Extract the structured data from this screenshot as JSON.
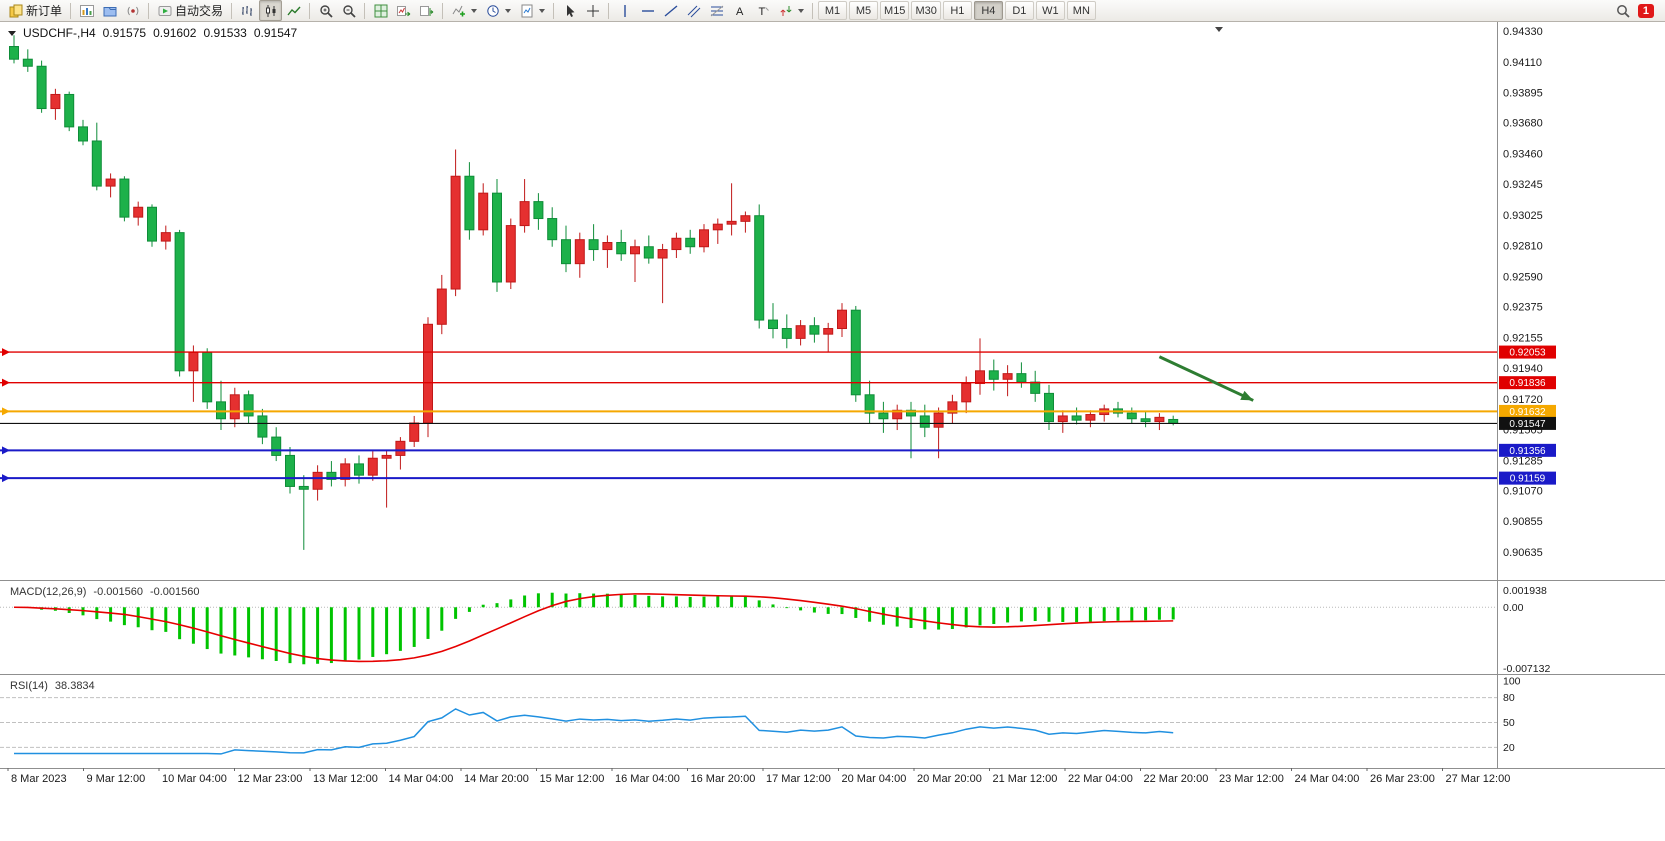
{
  "toolbar": {
    "buttons": [
      {
        "name": "new-order-button",
        "icon": "new-order",
        "label": "新订单",
        "group": 0
      },
      {
        "name": "new-chart-button",
        "icon": "new-chart",
        "group": 1
      },
      {
        "name": "profiles-button",
        "icon": "profiles",
        "group": 1
      },
      {
        "name": "community-button",
        "icon": "community",
        "group": 1
      },
      {
        "name": "autotrading-button",
        "icon": "autotrading",
        "label": "自动交易",
        "group": 2
      },
      {
        "name": "bar-chart-button",
        "icon": "bars",
        "group": 3
      },
      {
        "name": "candlestick-button",
        "icon": "candles",
        "group": 3,
        "active": true
      },
      {
        "name": "line-chart-button",
        "icon": "line-chart",
        "group": 3
      },
      {
        "name": "zoom-in-button",
        "icon": "zoom-in",
        "group": 4
      },
      {
        "name": "zoom-out-button",
        "icon": "zoom-out",
        "group": 4
      },
      {
        "name": "tile-windows-button",
        "icon": "tile-windows",
        "group": 5
      },
      {
        "name": "auto-scroll-button",
        "icon": "auto-scroll",
        "group": 5
      },
      {
        "name": "chart-shift-button",
        "icon": "chart-shift",
        "group": 5
      },
      {
        "name": "indicators-button",
        "icon": "indicators",
        "dropdown": true,
        "group": 6
      },
      {
        "name": "periods-button",
        "icon": "periods",
        "dropdown": true,
        "group": 6
      },
      {
        "name": "templates-button",
        "icon": "templates",
        "dropdown": true,
        "group": 6
      },
      {
        "name": "cursor-button",
        "icon": "cursor",
        "group": 7
      },
      {
        "name": "crosshair-button",
        "icon": "crosshair",
        "group": 7
      },
      {
        "name": "vline-button",
        "icon": "vline",
        "group": 8
      },
      {
        "name": "hline-button",
        "icon": "hline",
        "group": 8
      },
      {
        "name": "trendline-button",
        "icon": "trendline",
        "group": 8
      },
      {
        "name": "channel-button",
        "icon": "channel",
        "group": 8
      },
      {
        "name": "fibonacci-button",
        "icon": "fibonacci",
        "group": 8
      },
      {
        "name": "text-button",
        "icon": "text",
        "group": 8
      },
      {
        "name": "label-button",
        "icon": "label",
        "group": 8
      },
      {
        "name": "arrows-button",
        "icon": "arrows",
        "dropdown": true,
        "group": 8
      }
    ],
    "timeframes": [
      "M1",
      "M5",
      "M15",
      "M30",
      "H1",
      "H4",
      "D1",
      "W1",
      "MN"
    ],
    "active_timeframe": "H4",
    "notification_count": "1"
  },
  "chart_data": {
    "type": "candlestick",
    "title": "USDCHF-,H4",
    "header": {
      "symbol": "USDCHF-,H4",
      "open": "0.91575",
      "high": "0.91602",
      "low": "0.91533",
      "close": "0.91547"
    },
    "price_axis": [
      0.9433,
      0.9411,
      0.93895,
      0.9368,
      0.9346,
      0.93245,
      0.93025,
      0.9281,
      0.9259,
      0.92375,
      0.92155,
      0.9194,
      0.9172,
      0.91505,
      0.91285,
      0.9107,
      0.90855,
      0.90635
    ],
    "time_axis": [
      "8 Mar 2023",
      "9 Mar 12:00",
      "10 Mar 04:00",
      "12 Mar 23:00",
      "13 Mar 12:00",
      "14 Mar 04:00",
      "14 Mar 20:00",
      "15 Mar 12:00",
      "16 Mar 04:00",
      "16 Mar 20:00",
      "17 Mar 12:00",
      "20 Mar 04:00",
      "20 Mar 20:00",
      "21 Mar 12:00",
      "22 Mar 04:00",
      "22 Mar 20:00",
      "23 Mar 12:00",
      "24 Mar 04:00",
      "26 Mar 23:00",
      "27 Mar 12:00"
    ],
    "candles": [
      [
        0.9422,
        0.943,
        0.941,
        0.9413
      ],
      [
        0.9413,
        0.942,
        0.9404,
        0.9408
      ],
      [
        0.9408,
        0.9412,
        0.9375,
        0.9378
      ],
      [
        0.9378,
        0.9392,
        0.937,
        0.9388
      ],
      [
        0.9388,
        0.939,
        0.9362,
        0.9365
      ],
      [
        0.9365,
        0.937,
        0.9352,
        0.9355
      ],
      [
        0.9355,
        0.9368,
        0.932,
        0.9323
      ],
      [
        0.9323,
        0.9332,
        0.9315,
        0.9328
      ],
      [
        0.9328,
        0.933,
        0.9298,
        0.9301
      ],
      [
        0.9301,
        0.9312,
        0.9295,
        0.9308
      ],
      [
        0.9308,
        0.931,
        0.928,
        0.9284
      ],
      [
        0.9284,
        0.9295,
        0.9278,
        0.929
      ],
      [
        0.929,
        0.9292,
        0.9188,
        0.9192
      ],
      [
        0.9192,
        0.921,
        0.917,
        0.9205
      ],
      [
        0.9205,
        0.9208,
        0.9165,
        0.917
      ],
      [
        0.917,
        0.9185,
        0.915,
        0.9158
      ],
      [
        0.9158,
        0.918,
        0.9152,
        0.9175
      ],
      [
        0.9175,
        0.9178,
        0.9155,
        0.916
      ],
      [
        0.916,
        0.9165,
        0.914,
        0.9145
      ],
      [
        0.9145,
        0.9152,
        0.9128,
        0.9132
      ],
      [
        0.9132,
        0.9138,
        0.9105,
        0.911
      ],
      [
        0.911,
        0.9118,
        0.9065,
        0.9108
      ],
      [
        0.9108,
        0.9125,
        0.91,
        0.912
      ],
      [
        0.912,
        0.9128,
        0.911,
        0.9115
      ],
      [
        0.9115,
        0.913,
        0.911,
        0.9126
      ],
      [
        0.9126,
        0.9132,
        0.9112,
        0.9118
      ],
      [
        0.9118,
        0.9135,
        0.9114,
        0.913
      ],
      [
        0.913,
        0.9136,
        0.9095,
        0.9132
      ],
      [
        0.9132,
        0.9145,
        0.9122,
        0.9142
      ],
      [
        0.9142,
        0.916,
        0.9138,
        0.9155
      ],
      [
        0.9155,
        0.923,
        0.9145,
        0.9225
      ],
      [
        0.9225,
        0.926,
        0.9218,
        0.925
      ],
      [
        0.925,
        0.9349,
        0.9245,
        0.933
      ],
      [
        0.933,
        0.934,
        0.9285,
        0.9292
      ],
      [
        0.9292,
        0.9325,
        0.9288,
        0.9318
      ],
      [
        0.9318,
        0.9328,
        0.9248,
        0.9255
      ],
      [
        0.9255,
        0.93,
        0.925,
        0.9295
      ],
      [
        0.9295,
        0.9328,
        0.929,
        0.9312
      ],
      [
        0.9312,
        0.9318,
        0.9292,
        0.93
      ],
      [
        0.93,
        0.9308,
        0.928,
        0.9285
      ],
      [
        0.9285,
        0.9295,
        0.9262,
        0.9268
      ],
      [
        0.9268,
        0.929,
        0.9258,
        0.9285
      ],
      [
        0.9285,
        0.9296,
        0.927,
        0.9278
      ],
      [
        0.9278,
        0.9288,
        0.9265,
        0.9283
      ],
      [
        0.9283,
        0.9292,
        0.927,
        0.9275
      ],
      [
        0.9275,
        0.9285,
        0.9255,
        0.928
      ],
      [
        0.928,
        0.9288,
        0.9268,
        0.9272
      ],
      [
        0.9272,
        0.9282,
        0.924,
        0.9278
      ],
      [
        0.9278,
        0.929,
        0.9272,
        0.9286
      ],
      [
        0.9286,
        0.9292,
        0.9275,
        0.928
      ],
      [
        0.928,
        0.9296,
        0.9276,
        0.9292
      ],
      [
        0.9292,
        0.93,
        0.9282,
        0.9296
      ],
      [
        0.9296,
        0.9325,
        0.9288,
        0.9298
      ],
      [
        0.9298,
        0.9305,
        0.929,
        0.9302
      ],
      [
        0.9302,
        0.931,
        0.9222,
        0.9228
      ],
      [
        0.9228,
        0.924,
        0.9215,
        0.9222
      ],
      [
        0.9222,
        0.9232,
        0.9208,
        0.9215
      ],
      [
        0.9215,
        0.9228,
        0.921,
        0.9224
      ],
      [
        0.9224,
        0.923,
        0.9212,
        0.9218
      ],
      [
        0.9218,
        0.9226,
        0.9205,
        0.9222
      ],
      [
        0.9222,
        0.924,
        0.9216,
        0.9235
      ],
      [
        0.9235,
        0.9238,
        0.917,
        0.9175
      ],
      [
        0.9175,
        0.9185,
        0.9155,
        0.9162
      ],
      [
        0.9162,
        0.917,
        0.9148,
        0.9158
      ],
      [
        0.9158,
        0.9168,
        0.915,
        0.9164
      ],
      [
        0.9164,
        0.917,
        0.913,
        0.916
      ],
      [
        0.916,
        0.9168,
        0.9145,
        0.9152
      ],
      [
        0.9152,
        0.9166,
        0.913,
        0.9162
      ],
      [
        0.9162,
        0.9175,
        0.9155,
        0.917
      ],
      [
        0.917,
        0.9188,
        0.9162,
        0.9183
      ],
      [
        0.9183,
        0.9215,
        0.9175,
        0.9192
      ],
      [
        0.9192,
        0.92,
        0.9178,
        0.9186
      ],
      [
        0.9186,
        0.9196,
        0.9174,
        0.919
      ],
      [
        0.919,
        0.9198,
        0.918,
        0.9184
      ],
      [
        0.9184,
        0.9192,
        0.917,
        0.9176
      ],
      [
        0.9176,
        0.9182,
        0.915,
        0.9156
      ],
      [
        0.9156,
        0.9164,
        0.9148,
        0.916
      ],
      [
        0.916,
        0.9166,
        0.9154,
        0.9157
      ],
      [
        0.9157,
        0.9164,
        0.9152,
        0.9161
      ],
      [
        0.9161,
        0.9168,
        0.9156,
        0.9165
      ],
      [
        0.9165,
        0.917,
        0.9159,
        0.9162
      ],
      [
        0.9162,
        0.9166,
        0.9155,
        0.9158
      ],
      [
        0.9158,
        0.9163,
        0.9152,
        0.9156
      ],
      [
        0.9156,
        0.9162,
        0.915,
        0.9159
      ],
      [
        0.91575,
        0.91602,
        0.91533,
        0.91547
      ]
    ],
    "hlines": [
      {
        "price": 0.92053,
        "color": "#e00000",
        "width": 1.4
      },
      {
        "price": 0.91836,
        "color": "#e00000",
        "width": 1.4
      },
      {
        "price": 0.91632,
        "color": "#f5a800",
        "width": 2
      },
      {
        "price": 0.91356,
        "color": "#1a1ac8",
        "width": 2
      },
      {
        "price": 0.91159,
        "color": "#1a1ac8",
        "width": 2
      }
    ],
    "current_price": {
      "price": 0.91547,
      "color": "#111111"
    },
    "trend_arrow": {
      "x1_bar": 83,
      "price1": 0.9202,
      "x2_bar": 89.8,
      "price2": 0.9171,
      "color": "#2e7d32"
    },
    "indicators": {
      "macd": {
        "name": "MACD(12,26,9)",
        "fast": 12,
        "slow": 26,
        "signal": 9,
        "main_value": "-0.001560",
        "signal_value": "-0.001560",
        "axis_max": "0.001938",
        "axis_zero": "0.00",
        "axis_min": "-0.007132",
        "histogram_color": "#00c400",
        "signal_color": "#e60000"
      },
      "rsi": {
        "name": "RSI(14)",
        "period": 14,
        "value": "38.3834",
        "levels": [
          {
            "text": "100",
            "value": 100
          },
          {
            "text": "80",
            "value": 80
          },
          {
            "text": "50",
            "value": 50
          },
          {
            "text": "20",
            "value": 20
          }
        ],
        "line_color": "#2090e0"
      }
    },
    "colors": {
      "bull": "#e53030",
      "bear": "#1db14a",
      "bull_border": "#c01818",
      "bear_border": "#0e8c38",
      "background": "#ffffff",
      "axis_text": "#1a1a1a"
    }
  }
}
